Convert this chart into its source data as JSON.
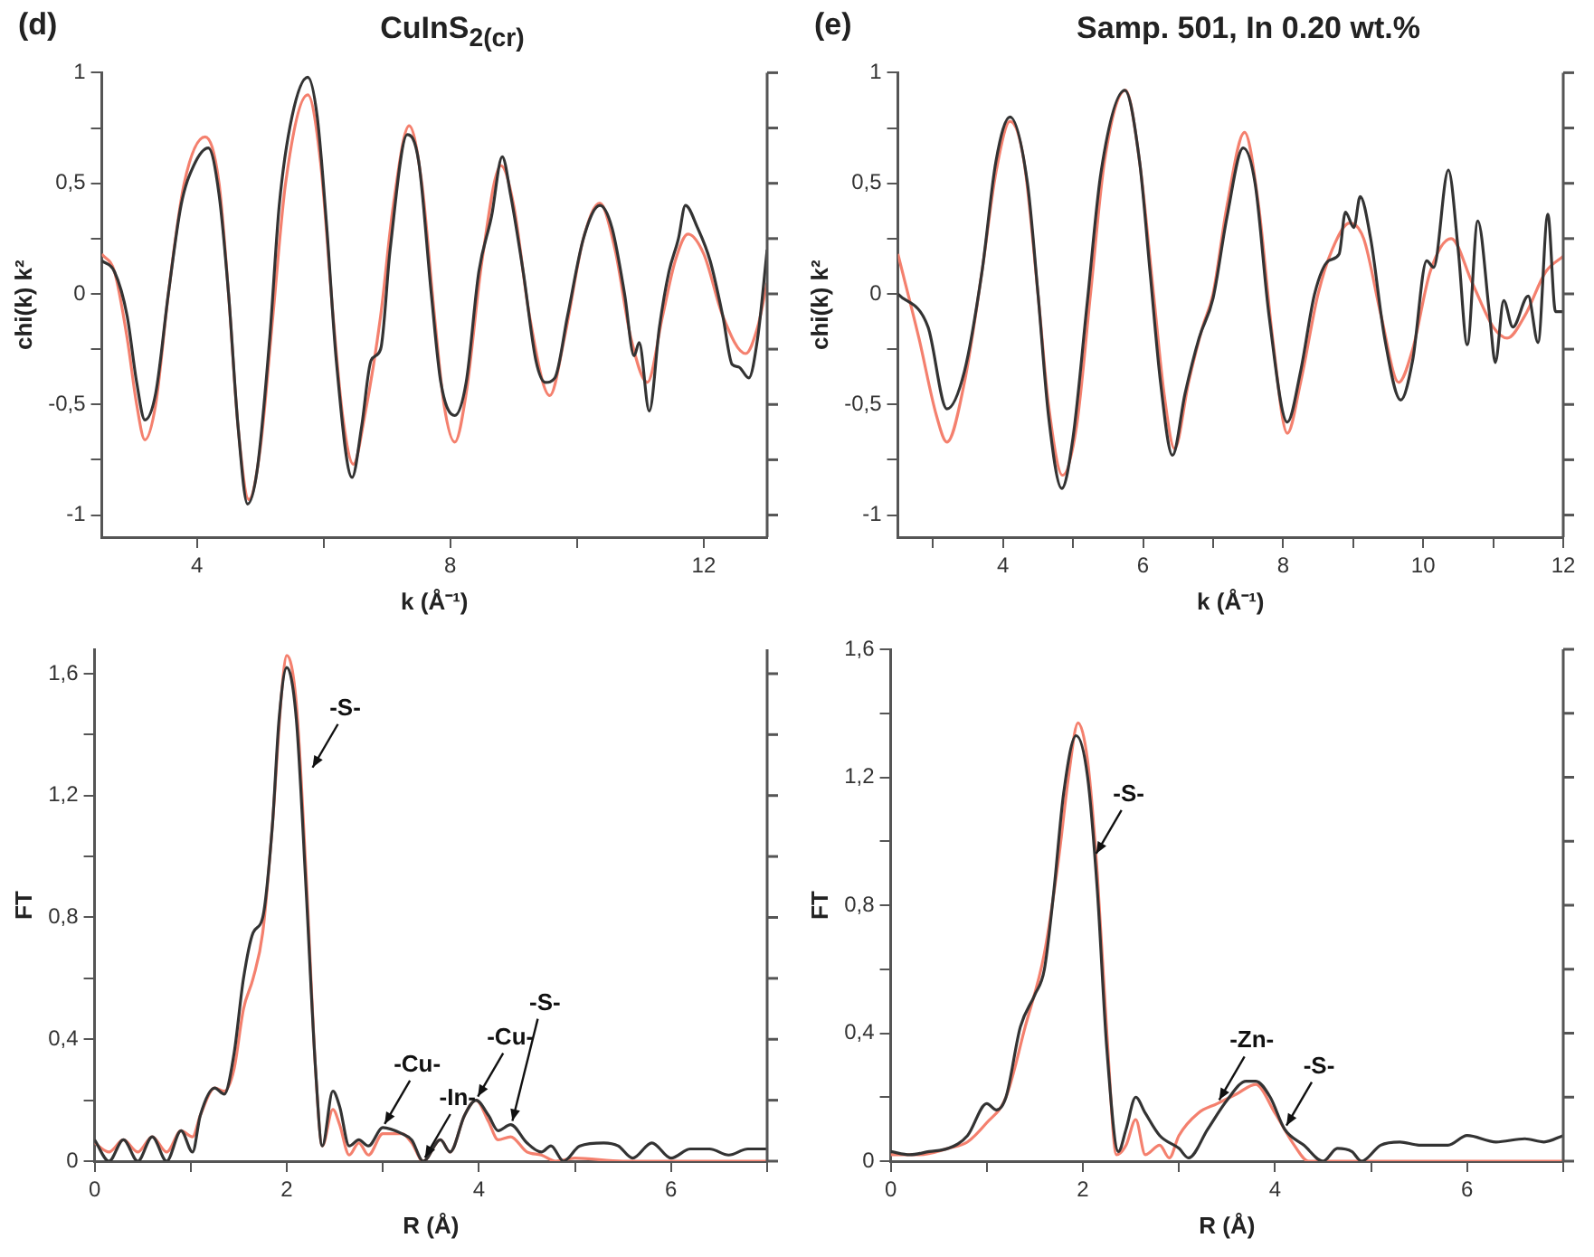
{
  "chart_data": [
    {
      "type": "line",
      "title": "CuInS$_{2(cr)}$",
      "xlabel": "k (Å⁻¹)",
      "ylabel": "chi(k) k²",
      "annotations": [
        "(d)"
      ],
      "marker": "none",
      "line_style": "solid",
      "xlim": [
        2.5,
        13
      ],
      "xticks": [
        4,
        {
          "value": 6,
          "label": null
        },
        8,
        {
          "value": 10,
          "label": null
        },
        12
      ],
      "ylim": [
        -1.1,
        1
      ],
      "yticks": [
        -1,
        {
          "value": -0.75,
          "label": null
        },
        {
          "value": -0.5,
          "label": "-0,5"
        },
        {
          "value": -0.25,
          "label": null
        },
        0,
        {
          "value": 0.25,
          "label": null
        },
        {
          "value": 0.5,
          "label": "0,5"
        },
        {
          "value": 0.75,
          "label": null
        },
        1
      ],
      "series": [
        {
          "color": "#333333",
          "x": [
            2.5,
            2.7,
            2.9,
            3.05,
            3.18,
            3.35,
            3.55,
            3.75,
            3.95,
            4.18,
            4.35,
            4.5,
            4.65,
            4.8,
            4.95,
            5.15,
            5.3,
            5.5,
            5.75,
            5.9,
            6.05,
            6.2,
            6.45,
            6.6,
            6.75,
            6.9,
            7.05,
            7.32,
            7.5,
            7.7,
            7.85,
            8.07,
            8.25,
            8.45,
            8.65,
            8.82,
            8.95,
            9.15,
            9.35,
            9.5,
            9.65,
            9.85,
            10.1,
            10.36,
            10.55,
            10.75,
            10.9,
            10.98,
            11.14,
            11.3,
            11.45,
            11.6,
            11.71,
            11.9,
            12.1,
            12.3,
            12.45,
            12.55,
            12.71,
            12.85,
            13.0
          ],
          "values": [
            0.15,
            0.1,
            -0.1,
            -0.4,
            -0.57,
            -0.45,
            0.0,
            0.4,
            0.58,
            0.66,
            0.45,
            0.0,
            -0.6,
            -0.95,
            -0.8,
            -0.2,
            0.4,
            0.8,
            0.98,
            0.8,
            0.3,
            -0.3,
            -0.83,
            -0.6,
            -0.3,
            -0.25,
            0.2,
            0.72,
            0.6,
            0.0,
            -0.4,
            -0.55,
            -0.4,
            0.1,
            0.35,
            0.62,
            0.45,
            0.1,
            -0.3,
            -0.4,
            -0.38,
            -0.1,
            0.25,
            0.4,
            0.3,
            0.0,
            -0.28,
            -0.22,
            -0.53,
            -0.15,
            0.1,
            0.25,
            0.4,
            0.3,
            0.15,
            -0.1,
            -0.32,
            -0.33,
            -0.38,
            -0.2,
            0.2
          ]
        },
        {
          "color": "#f4806e",
          "x": [
            2.5,
            2.7,
            2.9,
            3.05,
            3.18,
            3.35,
            3.55,
            3.8,
            4.13,
            4.35,
            4.5,
            4.65,
            4.82,
            5.0,
            5.2,
            5.4,
            5.75,
            5.95,
            6.15,
            6.3,
            6.47,
            6.65,
            6.9,
            7.1,
            7.35,
            7.55,
            7.75,
            7.9,
            8.07,
            8.25,
            8.5,
            8.8,
            9.0,
            9.25,
            9.57,
            9.8,
            10.1,
            10.36,
            10.6,
            10.85,
            11.11,
            11.35,
            11.55,
            11.75,
            12.0,
            12.3,
            12.66,
            12.85,
            13.0
          ],
          "values": [
            0.18,
            0.1,
            -0.2,
            -0.5,
            -0.66,
            -0.5,
            0.0,
            0.5,
            0.71,
            0.5,
            0.0,
            -0.6,
            -0.93,
            -0.7,
            -0.1,
            0.5,
            0.9,
            0.6,
            -0.1,
            -0.55,
            -0.77,
            -0.55,
            -0.1,
            0.4,
            0.76,
            0.5,
            -0.1,
            -0.5,
            -0.67,
            -0.45,
            0.15,
            0.58,
            0.4,
            -0.1,
            -0.46,
            -0.2,
            0.25,
            0.41,
            0.2,
            -0.2,
            -0.4,
            -0.1,
            0.15,
            0.27,
            0.18,
            -0.1,
            -0.27,
            -0.15,
            0.05
          ]
        }
      ]
    },
    {
      "type": "line",
      "title": "Samp. 501, In 0.20 wt.%",
      "xlabel": "k (Å⁻¹)",
      "ylabel": "chi(k) k²",
      "annotations": [
        "(e)"
      ],
      "marker": "none",
      "line_style": "solid",
      "xlim": [
        2.5,
        12
      ],
      "xticks": [
        {
          "value": 3,
          "label": null
        },
        4,
        {
          "value": 5,
          "label": null
        },
        6,
        {
          "value": 7,
          "label": null
        },
        8,
        {
          "value": 9,
          "label": null
        },
        10,
        {
          "value": 11,
          "label": null
        },
        12
      ],
      "ylim": [
        -1.1,
        1
      ],
      "yticks": [
        -1,
        {
          "value": -0.75,
          "label": null
        },
        {
          "value": -0.5,
          "label": "-0,5"
        },
        {
          "value": -0.25,
          "label": null
        },
        0,
        {
          "value": 0.25,
          "label": null
        },
        {
          "value": 0.5,
          "label": "0,5"
        },
        {
          "value": 0.75,
          "label": null
        },
        1
      ],
      "series": [
        {
          "color": "#333333",
          "x": [
            2.5,
            2.93,
            3.2,
            3.45,
            3.7,
            3.9,
            4.1,
            4.35,
            4.5,
            4.65,
            4.84,
            5.0,
            5.2,
            5.4,
            5.74,
            5.95,
            6.1,
            6.25,
            6.42,
            6.6,
            6.8,
            7.0,
            7.2,
            7.43,
            7.6,
            7.8,
            8.06,
            8.25,
            8.45,
            8.65,
            8.8,
            8.89,
            9.01,
            9.1,
            9.25,
            9.45,
            9.68,
            9.85,
            10.05,
            10.15,
            10.36,
            10.5,
            10.63,
            10.78,
            10.95,
            11.03,
            11.15,
            11.28,
            11.5,
            11.64,
            11.78,
            11.89,
            12.0
          ],
          "values": [
            0.0,
            -0.15,
            -0.52,
            -0.35,
            0.1,
            0.6,
            0.8,
            0.5,
            0.0,
            -0.55,
            -0.88,
            -0.65,
            -0.05,
            0.55,
            0.92,
            0.6,
            0.1,
            -0.4,
            -0.73,
            -0.45,
            -0.2,
            -0.02,
            0.35,
            0.66,
            0.5,
            -0.1,
            -0.58,
            -0.35,
            0.0,
            0.15,
            0.18,
            0.37,
            0.3,
            0.44,
            0.25,
            -0.2,
            -0.48,
            -0.3,
            0.15,
            0.12,
            0.56,
            0.2,
            -0.23,
            0.33,
            -0.1,
            -0.31,
            -0.03,
            -0.15,
            -0.01,
            -0.22,
            0.36,
            -0.08,
            -0.08
          ]
        },
        {
          "color": "#f4806e",
          "x": [
            2.5,
            2.8,
            3.05,
            3.2,
            3.45,
            3.7,
            3.9,
            4.1,
            4.3,
            4.5,
            4.65,
            4.85,
            5.05,
            5.25,
            5.45,
            5.75,
            5.95,
            6.15,
            6.3,
            6.45,
            6.65,
            6.85,
            7.0,
            7.2,
            7.45,
            7.65,
            7.85,
            8.06,
            8.25,
            8.5,
            8.7,
            8.95,
            9.15,
            9.4,
            9.65,
            9.85,
            10.1,
            10.4,
            10.7,
            11.0,
            11.2,
            11.45,
            11.75,
            12.0
          ],
          "values": [
            0.18,
            -0.2,
            -0.55,
            -0.67,
            -0.4,
            0.1,
            0.55,
            0.78,
            0.6,
            0.0,
            -0.5,
            -0.82,
            -0.6,
            0.0,
            0.6,
            0.92,
            0.6,
            0.0,
            -0.45,
            -0.7,
            -0.4,
            -0.15,
            0.0,
            0.4,
            0.73,
            0.4,
            -0.2,
            -0.63,
            -0.4,
            0.0,
            0.2,
            0.32,
            0.25,
            -0.1,
            -0.4,
            -0.25,
            0.1,
            0.25,
            0.05,
            -0.15,
            -0.2,
            -0.1,
            0.1,
            0.17
          ]
        }
      ]
    },
    {
      "type": "line",
      "xlabel": "R (Å)",
      "ylabel": "FT",
      "marker": "none",
      "line_style": "solid",
      "annotations": [
        {
          "text": "-S-",
          "x": 2.25,
          "y": 1.28
        },
        {
          "text": "-Cu-",
          "x": 3.0,
          "y": 0.11
        },
        {
          "text": "-In-",
          "x": 3.42,
          "y": 0.0
        },
        {
          "text": "-Cu-",
          "x": 3.97,
          "y": 0.2
        },
        {
          "text": "-S-",
          "x": 4.33,
          "y": 0.12
        }
      ],
      "xlim": [
        0,
        7
      ],
      "xticks": [
        0,
        {
          "value": 1,
          "label": null
        },
        2,
        {
          "value": 3,
          "label": null
        },
        4,
        {
          "value": 5,
          "label": null
        },
        6,
        {
          "value": 7,
          "label": null
        }
      ],
      "ylim": [
        0,
        1.68
      ],
      "yticks": [
        0,
        {
          "value": 0.2,
          "label": null
        },
        {
          "value": 0.4,
          "label": "0,4"
        },
        {
          "value": 0.6,
          "label": null
        },
        {
          "value": 0.8,
          "label": "0,8"
        },
        {
          "value": 1,
          "label": null
        },
        {
          "value": 1.2,
          "label": "1,2"
        },
        {
          "value": 1.4,
          "label": null
        },
        {
          "value": 1.6,
          "label": "1,6"
        }
      ],
      "series": [
        {
          "color": "#333333",
          "x": [
            0,
            0.15,
            0.3,
            0.45,
            0.6,
            0.75,
            0.9,
            1.02,
            1.1,
            1.25,
            1.35,
            1.45,
            1.55,
            1.65,
            1.75,
            1.85,
            1.92,
            2.0,
            2.1,
            2.2,
            2.3,
            2.37,
            2.48,
            2.55,
            2.65,
            2.75,
            2.85,
            3.0,
            3.2,
            3.3,
            3.42,
            3.6,
            3.7,
            3.85,
            3.97,
            4.1,
            4.2,
            4.33,
            4.5,
            4.65,
            4.75,
            4.88,
            5.05,
            5.3,
            5.45,
            5.6,
            5.8,
            6.0,
            6.2,
            6.4,
            6.6,
            6.8,
            7.0
          ],
          "values": [
            0.07,
            0.0,
            0.07,
            0.0,
            0.08,
            0.0,
            0.1,
            0.03,
            0.15,
            0.24,
            0.22,
            0.35,
            0.6,
            0.75,
            0.8,
            1.1,
            1.45,
            1.62,
            1.45,
            0.9,
            0.3,
            0.05,
            0.23,
            0.18,
            0.05,
            0.07,
            0.05,
            0.11,
            0.09,
            0.07,
            0.0,
            0.07,
            0.03,
            0.15,
            0.2,
            0.15,
            0.1,
            0.12,
            0.06,
            0.03,
            0.05,
            0.0,
            0.05,
            0.06,
            0.05,
            0.01,
            0.06,
            0.01,
            0.04,
            0.04,
            0.02,
            0.04,
            0.04
          ]
        },
        {
          "color": "#f4806e",
          "x": [
            0,
            0.15,
            0.3,
            0.45,
            0.6,
            0.75,
            0.9,
            1.02,
            1.1,
            1.25,
            1.35,
            1.45,
            1.55,
            1.65,
            1.75,
            1.85,
            1.95,
            2.0,
            2.1,
            2.2,
            2.3,
            2.37,
            2.48,
            2.55,
            2.65,
            2.75,
            2.85,
            3.0,
            3.2,
            3.3,
            3.42,
            3.6,
            3.7,
            3.85,
            3.97,
            4.1,
            4.2,
            4.33,
            4.5,
            4.65,
            4.8,
            5.0,
            5.5,
            6.0,
            7.0
          ],
          "values": [
            0.06,
            0.03,
            0.07,
            0.03,
            0.08,
            0.03,
            0.1,
            0.08,
            0.15,
            0.24,
            0.23,
            0.3,
            0.5,
            0.6,
            0.75,
            1.1,
            1.55,
            1.66,
            1.5,
            0.95,
            0.3,
            0.05,
            0.17,
            0.12,
            0.02,
            0.06,
            0.02,
            0.09,
            0.09,
            0.06,
            0.0,
            0.07,
            0.03,
            0.15,
            0.2,
            0.13,
            0.07,
            0.08,
            0.03,
            0.02,
            0.0,
            0.01,
            0.0,
            0.0,
            0.0
          ]
        }
      ]
    },
    {
      "type": "line",
      "xlabel": "R (Å)",
      "ylabel": "FT",
      "marker": "none",
      "line_style": "solid",
      "annotations": [
        {
          "text": "-S-",
          "x": 2.12,
          "y": 0.95
        },
        {
          "text": "-Zn-",
          "x": 3.4,
          "y": 0.18
        },
        {
          "text": "-S-",
          "x": 4.1,
          "y": 0.1
        }
      ],
      "xlim": [
        0,
        7
      ],
      "xticks": [
        0,
        {
          "value": 1,
          "label": null
        },
        2,
        {
          "value": 3,
          "label": null
        },
        4,
        {
          "value": 5,
          "label": null
        },
        6,
        {
          "value": 7,
          "label": null
        }
      ],
      "ylim": [
        0,
        1.6
      ],
      "yticks": [
        0,
        {
          "value": 0.2,
          "label": null
        },
        {
          "value": 0.4,
          "label": "0,4"
        },
        {
          "value": 0.6,
          "label": null
        },
        {
          "value": 0.8,
          "label": "0,8"
        },
        {
          "value": 1,
          "label": null
        },
        {
          "value": 1.2,
          "label": "1,2"
        },
        {
          "value": 1.4,
          "label": null
        },
        {
          "value": 1.6,
          "label": "1,6"
        }
      ],
      "series": [
        {
          "color": "#333333",
          "x": [
            0,
            0.2,
            0.4,
            0.6,
            0.8,
            1.0,
            1.1,
            1.2,
            1.35,
            1.5,
            1.6,
            1.7,
            1.8,
            1.93,
            2.05,
            2.15,
            2.25,
            2.37,
            2.45,
            2.55,
            2.65,
            2.8,
            3.0,
            3.1,
            3.3,
            3.5,
            3.7,
            3.8,
            3.95,
            4.1,
            4.3,
            4.5,
            4.65,
            4.8,
            4.9,
            5.1,
            5.3,
            5.5,
            5.8,
            6.0,
            6.3,
            6.6,
            6.8,
            7.0
          ],
          "values": [
            0.03,
            0.02,
            0.03,
            0.04,
            0.08,
            0.18,
            0.16,
            0.2,
            0.42,
            0.52,
            0.6,
            0.85,
            1.15,
            1.33,
            1.2,
            0.85,
            0.35,
            0.03,
            0.1,
            0.2,
            0.15,
            0.08,
            0.04,
            0.01,
            0.1,
            0.19,
            0.25,
            0.25,
            0.2,
            0.1,
            0.05,
            0.0,
            0.04,
            0.03,
            0.0,
            0.05,
            0.06,
            0.05,
            0.05,
            0.08,
            0.06,
            0.07,
            0.06,
            0.08
          ]
        },
        {
          "color": "#f4806e",
          "x": [
            0,
            0.3,
            0.6,
            0.8,
            1.0,
            1.2,
            1.4,
            1.6,
            1.75,
            1.85,
            1.95,
            2.05,
            2.15,
            2.25,
            2.35,
            2.45,
            2.55,
            2.65,
            2.8,
            2.9,
            3.0,
            3.2,
            3.4,
            3.6,
            3.8,
            4.0,
            4.2,
            4.35,
            5.0,
            6.0,
            7.0
          ],
          "values": [
            0.02,
            0.02,
            0.04,
            0.06,
            0.12,
            0.2,
            0.42,
            0.65,
            0.95,
            1.2,
            1.37,
            1.25,
            0.9,
            0.4,
            0.02,
            0.05,
            0.13,
            0.02,
            0.05,
            0.01,
            0.08,
            0.15,
            0.18,
            0.21,
            0.24,
            0.15,
            0.05,
            0.0,
            0.0,
            0.0,
            0.0
          ]
        }
      ]
    }
  ]
}
